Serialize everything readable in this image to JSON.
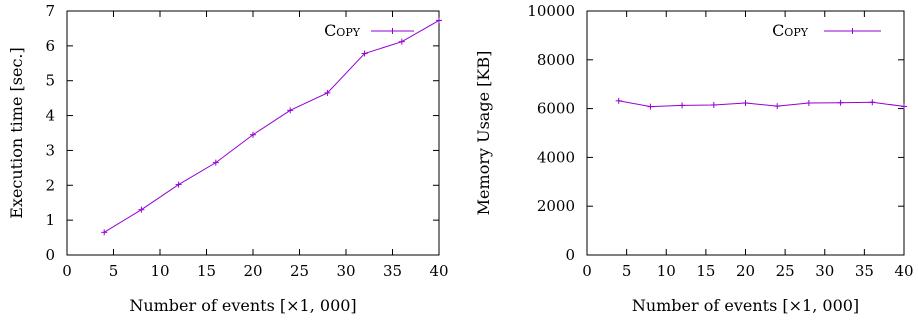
{
  "chart_data": [
    {
      "type": "line",
      "xlabel": "Number of events [×1, 000]",
      "ylabel": "Execution time [sec.]",
      "xlim": [
        0,
        40
      ],
      "ylim": [
        0,
        7
      ],
      "xticks": [
        0,
        5,
        10,
        15,
        20,
        25,
        30,
        35,
        40
      ],
      "yticks": [
        0,
        1,
        2,
        3,
        4,
        5,
        6,
        7
      ],
      "grid": false,
      "legend_position": "top-right",
      "series": [
        {
          "name": "Copy",
          "color": "#9400d3",
          "marker": "plus",
          "x": [
            4,
            8,
            12,
            16,
            20,
            24,
            28,
            32,
            36,
            40
          ],
          "y": [
            0.65,
            1.3,
            2.02,
            2.65,
            3.45,
            4.15,
            4.65,
            5.78,
            6.12,
            6.73
          ]
        }
      ]
    },
    {
      "type": "line",
      "xlabel": "Number of events [×1, 000]",
      "ylabel": "Memory Usage [KB]",
      "xlim": [
        0,
        40
      ],
      "ylim": [
        0,
        10000
      ],
      "xticks": [
        0,
        5,
        10,
        15,
        20,
        25,
        30,
        35,
        40
      ],
      "yticks": [
        0,
        2000,
        4000,
        6000,
        8000,
        10000
      ],
      "grid": false,
      "legend_position": "top-right",
      "series": [
        {
          "name": "Copy",
          "color": "#9400d3",
          "marker": "plus",
          "x": [
            4,
            8,
            12,
            16,
            20,
            24,
            28,
            32,
            36,
            40
          ],
          "y": [
            6320,
            6080,
            6130,
            6150,
            6230,
            6100,
            6230,
            6240,
            6260,
            6090
          ]
        }
      ]
    }
  ]
}
